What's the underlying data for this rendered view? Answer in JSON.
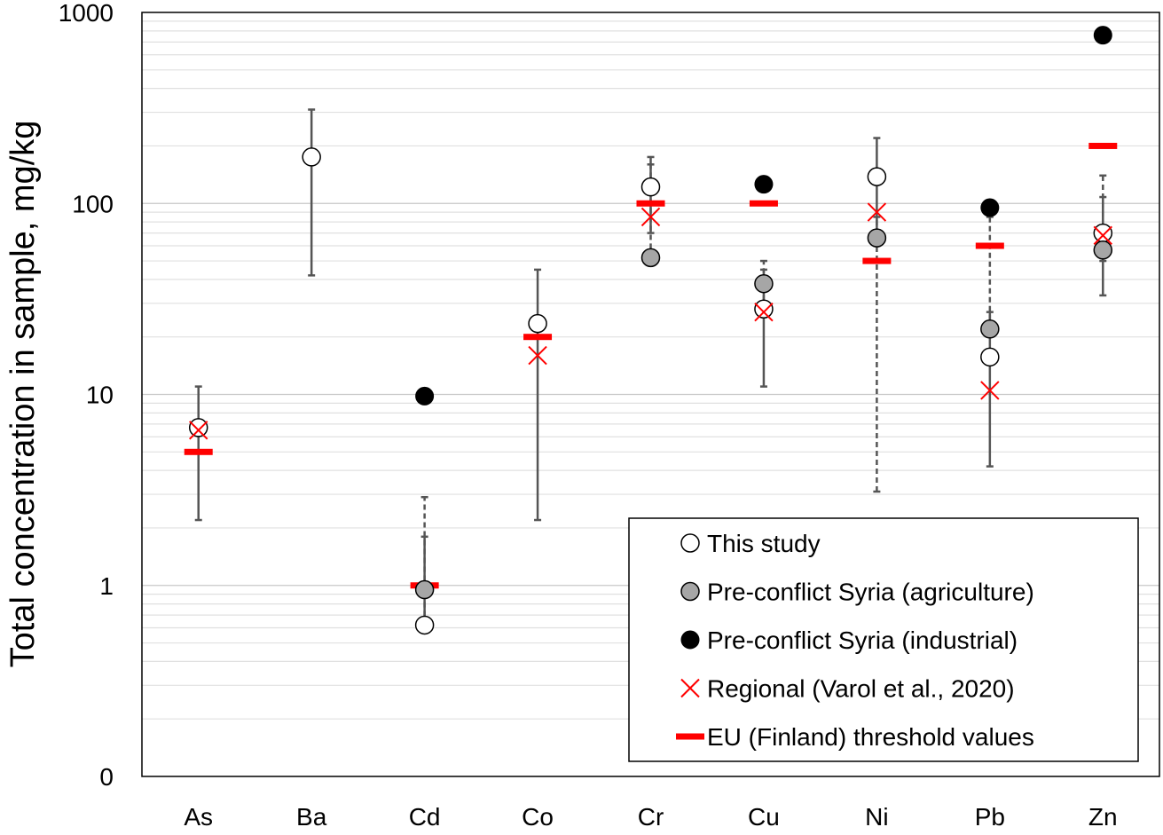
{
  "chart_data": {
    "type": "scatter",
    "title": "",
    "ylabel": "Total concentration in sample, mg/kg",
    "xlabel": "",
    "y_scale": "log",
    "ylim": [
      0.1,
      1000
    ],
    "y_ticks": [
      {
        "value": 0.1,
        "label": "0"
      },
      {
        "value": 1,
        "label": "1"
      },
      {
        "value": 10,
        "label": "10"
      },
      {
        "value": 100,
        "label": "100"
      },
      {
        "value": 1000,
        "label": "1000"
      }
    ],
    "grid": "minor horizontal log gridlines",
    "legend_position": "bottom-right",
    "categories": [
      "As",
      "Ba",
      "Cd",
      "Co",
      "Cr",
      "Cu",
      "Ni",
      "Pb",
      "Zn"
    ],
    "series": [
      {
        "name": "This study",
        "marker": "open-circle",
        "color": "#000000",
        "values": [
          6.7,
          175,
          0.62,
          23.5,
          122,
          28,
          138,
          15.7,
          70
        ]
      },
      {
        "name": "Pre-conflict Syria (agriculture)",
        "marker": "gray-circle",
        "color": "#a6a6a6",
        "values": [
          null,
          null,
          0.95,
          null,
          52,
          38,
          66,
          22,
          57
        ]
      },
      {
        "name": "Pre-conflict Syria (industrial)",
        "marker": "black-circle",
        "color": "#000000",
        "values": [
          null,
          null,
          9.8,
          null,
          null,
          126,
          null,
          95,
          760
        ]
      },
      {
        "name": "Regional (Varol et al., 2020)",
        "marker": "x",
        "color": "#ff0000",
        "values": [
          6.5,
          null,
          null,
          16,
          85,
          27,
          90,
          10.5,
          68
        ]
      },
      {
        "name": "EU (Finland) threshold values",
        "marker": "dash",
        "color": "#ff0000",
        "values": [
          5,
          null,
          1,
          20,
          100,
          100,
          50,
          60,
          200
        ]
      }
    ],
    "error_bars": [
      {
        "category": "As",
        "style": "solid",
        "low": 2.2,
        "high": 11
      },
      {
        "category": "Ba",
        "style": "solid",
        "low": 42,
        "high": 310
      },
      {
        "category": "Cd",
        "style": "dashed",
        "low": 0.62,
        "high": 2.9
      },
      {
        "category": "Cd",
        "style": "solid",
        "low": 0.62,
        "high": 1.8
      },
      {
        "category": "Co",
        "style": "solid",
        "low": 2.2,
        "high": 45
      },
      {
        "category": "Cr",
        "style": "dashed",
        "low": 52,
        "high": 160
      },
      {
        "category": "Cr",
        "style": "solid",
        "low": 70,
        "high": 175
      },
      {
        "category": "Cu",
        "style": "dashed",
        "low": 28,
        "high": 50
      },
      {
        "category": "Cu",
        "style": "solid",
        "low": 11,
        "high": 45
      },
      {
        "category": "Ni",
        "style": "dashed",
        "low": 3.1,
        "high": 85
      },
      {
        "category": "Ni",
        "style": "solid",
        "low": 60,
        "high": 220
      },
      {
        "category": "Pb",
        "style": "dashed",
        "low": 22,
        "high": 85
      },
      {
        "category": "Pb",
        "style": "solid",
        "low": 4.2,
        "high": 27
      },
      {
        "category": "Zn",
        "style": "dashed",
        "low": 50,
        "high": 140
      },
      {
        "category": "Zn",
        "style": "solid",
        "low": 33,
        "high": 108
      }
    ]
  }
}
